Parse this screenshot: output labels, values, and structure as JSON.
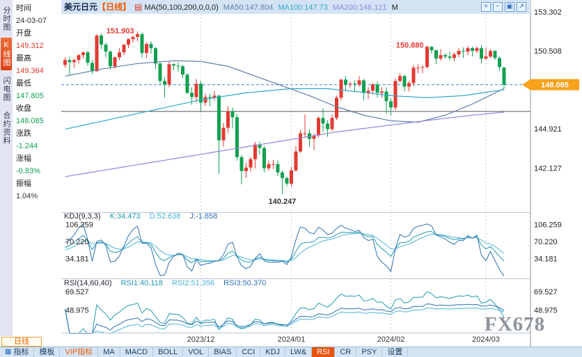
{
  "topbar": {
    "title": "美元日元",
    "period": "【日线】",
    "ma_params": "MA(50,100,200,0,0,0)",
    "ma_values": [
      {
        "text": "MA50:147.804",
        "color": "#5f7ea8"
      },
      {
        "text": "MA100:147.73",
        "color": "#2fa8c8"
      },
      {
        "text": "MA200:146.121",
        "color": "#8f86dc"
      }
    ],
    "truncated": "M",
    "tools": [
      {
        "name": "zoom-in",
        "glyph": "+"
      },
      {
        "name": "zoom-out",
        "glyph": "−"
      },
      {
        "name": "panel-grid",
        "glyph": "▣"
      },
      {
        "name": "expand",
        "glyph": "↗"
      }
    ]
  },
  "left_tabs": [
    {
      "label": "分时图",
      "active": false
    },
    {
      "label": "K线图",
      "active": true
    },
    {
      "label": "闪电图",
      "active": false
    },
    {
      "label": "合约资料",
      "active": false
    }
  ],
  "quote": {
    "rows": [
      {
        "label": "时间",
        "value": "24-03-07",
        "trend": "flat"
      },
      {
        "label": "开盘",
        "value": "149.312",
        "trend": "up"
      },
      {
        "label": "最高",
        "value": "149.364",
        "trend": "up"
      },
      {
        "label": "最低",
        "value": "147.805",
        "trend": "down"
      },
      {
        "label": "收盘",
        "value": "148.085",
        "trend": "down"
      },
      {
        "label": "涨跌",
        "value": "-1.244",
        "trend": "down"
      },
      {
        "label": "涨幅",
        "value": "-0.83%",
        "trend": "down"
      },
      {
        "label": "振幅",
        "value": "1.04%",
        "trend": "flat"
      }
    ]
  },
  "colors": {
    "up": "#e23a32",
    "down": "#11a050",
    "badge": "#f9a21b",
    "dashed_line": "#3f7fd0",
    "accent_orange": "#f25a02"
  },
  "chart_data": {
    "type": "candlestick",
    "symbol": "美元日元",
    "period": "日线",
    "ylim": [
      139.05,
      153.75
    ],
    "price_ticks": [
      153.302,
      150.508,
      144.921,
      142.127
    ],
    "last_price": 148.085,
    "last_price_label": "148.085",
    "ref_line": 146.17,
    "xticks": [
      {
        "i": 30,
        "label": "2023/12"
      },
      {
        "i": 50,
        "label": "2024/01"
      },
      {
        "i": 72,
        "label": "2024/02"
      },
      {
        "i": 93,
        "label": "2024/03"
      }
    ],
    "annotations": [
      {
        "i": 16,
        "price": 151.903,
        "label": "151.903",
        "trend": "up",
        "pos": "left"
      },
      {
        "i": 80,
        "price": 150.88,
        "label": "150.880",
        "trend": "up",
        "pos": "left"
      },
      {
        "i": 48,
        "price": 140.247,
        "label": "140.247",
        "trend": "none",
        "pos": "below"
      }
    ],
    "candles": [
      [
        149.5,
        150.05,
        149.3,
        149.85
      ],
      [
        149.85,
        150.1,
        148.8,
        149.7
      ],
      [
        149.7,
        149.95,
        149.3,
        149.85
      ],
      [
        149.85,
        150.3,
        149.6,
        150.2
      ],
      [
        150.2,
        150.45,
        149.95,
        150.4
      ],
      [
        150.4,
        150.5,
        149.45,
        149.65
      ],
      [
        149.65,
        149.85,
        148.85,
        149.05
      ],
      [
        149.05,
        151.7,
        149.0,
        151.6
      ],
      [
        151.6,
        151.75,
        150.65,
        150.95
      ],
      [
        150.95,
        151.1,
        150.05,
        150.45
      ],
      [
        150.45,
        150.55,
        149.15,
        149.4
      ],
      [
        149.4,
        150.1,
        149.2,
        150.05
      ],
      [
        150.05,
        150.7,
        149.85,
        150.4
      ],
      [
        150.4,
        151.0,
        150.2,
        150.95
      ],
      [
        150.95,
        151.4,
        150.7,
        151.35
      ],
      [
        151.35,
        151.6,
        151.1,
        151.5
      ],
      [
        151.5,
        151.903,
        151.2,
        151.7
      ],
      [
        151.7,
        151.8,
        150.0,
        150.35
      ],
      [
        150.35,
        151.1,
        150.0,
        151.0
      ],
      [
        151.0,
        151.2,
        150.3,
        150.7
      ],
      [
        150.7,
        150.8,
        149.2,
        149.6
      ],
      [
        149.6,
        149.7,
        148.1,
        148.35
      ],
      [
        148.35,
        148.6,
        147.15,
        148.1
      ],
      [
        148.1,
        149.75,
        147.9,
        149.55
      ],
      [
        149.55,
        149.6,
        149.1,
        149.45
      ],
      [
        149.45,
        149.7,
        149.0,
        149.4
      ],
      [
        149.4,
        149.5,
        148.55,
        148.8
      ],
      [
        148.8,
        148.9,
        147.4,
        147.5
      ],
      [
        147.5,
        147.9,
        146.65,
        147.2
      ],
      [
        147.2,
        148.5,
        146.8,
        148.15
      ],
      [
        148.15,
        148.35,
        146.2,
        146.8
      ],
      [
        146.8,
        147.45,
        146.55,
        147.2
      ],
      [
        147.2,
        147.45,
        146.55,
        147.15
      ],
      [
        147.15,
        147.65,
        146.95,
        147.3
      ],
      [
        147.3,
        147.35,
        141.7,
        144.1
      ],
      [
        144.1,
        145.35,
        143.65,
        145.0
      ],
      [
        145.0,
        146.55,
        144.6,
        146.2
      ],
      [
        146.2,
        146.45,
        144.95,
        145.75
      ],
      [
        145.75,
        146.0,
        142.65,
        142.9
      ],
      [
        142.9,
        143.05,
        140.95,
        141.9
      ],
      [
        141.9,
        142.5,
        141.4,
        142.15
      ],
      [
        142.15,
        142.9,
        141.85,
        142.75
      ],
      [
        142.75,
        144.0,
        142.1,
        143.8
      ],
      [
        143.8,
        144.0,
        143.1,
        143.55
      ],
      [
        143.55,
        143.7,
        141.8,
        142.1
      ],
      [
        142.1,
        142.65,
        141.9,
        142.4
      ],
      [
        142.4,
        142.7,
        142.05,
        142.4
      ],
      [
        142.4,
        142.65,
        141.55,
        141.8
      ],
      [
        141.8,
        141.95,
        140.247,
        141.4
      ],
      [
        141.4,
        141.5,
        140.8,
        141.0
      ],
      [
        141.0,
        142.2,
        140.8,
        141.95
      ],
      [
        141.95,
        143.7,
        141.85,
        143.3
      ],
      [
        143.3,
        144.85,
        143.2,
        144.6
      ],
      [
        144.6,
        145.95,
        144.35,
        144.6
      ],
      [
        144.6,
        144.9,
        143.65,
        144.2
      ],
      [
        144.2,
        144.6,
        143.4,
        144.45
      ],
      [
        144.45,
        145.8,
        144.3,
        145.7
      ],
      [
        145.7,
        146.4,
        144.7,
        145.3
      ],
      [
        145.3,
        145.55,
        144.35,
        144.9
      ],
      [
        144.9,
        145.95,
        144.75,
        145.7
      ],
      [
        145.7,
        147.3,
        145.55,
        147.15
      ],
      [
        147.15,
        148.5,
        146.95,
        148.45
      ],
      [
        148.45,
        148.7,
        147.65,
        148.1
      ],
      [
        148.1,
        148.3,
        147.85,
        148.15
      ],
      [
        148.15,
        148.4,
        147.55,
        148.1
      ],
      [
        148.1,
        148.7,
        147.95,
        148.4
      ],
      [
        148.4,
        148.5,
        146.95,
        147.5
      ],
      [
        147.5,
        147.9,
        147.05,
        147.65
      ],
      [
        147.65,
        148.2,
        147.4,
        148.1
      ],
      [
        148.1,
        148.3,
        147.15,
        147.5
      ],
      [
        147.5,
        147.9,
        147.15,
        147.6
      ],
      [
        147.6,
        147.9,
        146.0,
        146.9
      ],
      [
        146.9,
        147.1,
        145.9,
        146.45
      ],
      [
        146.45,
        148.55,
        146.25,
        148.35
      ],
      [
        148.35,
        148.9,
        148.25,
        148.7
      ],
      [
        148.7,
        148.8,
        147.6,
        147.95
      ],
      [
        147.95,
        148.35,
        147.6,
        148.2
      ],
      [
        148.2,
        149.45,
        148.0,
        149.3
      ],
      [
        149.3,
        149.55,
        148.9,
        149.3
      ],
      [
        149.3,
        149.45,
        148.9,
        149.35
      ],
      [
        149.35,
        150.88,
        149.25,
        150.8
      ],
      [
        150.8,
        150.85,
        150.3,
        150.55
      ],
      [
        150.55,
        150.6,
        149.55,
        149.95
      ],
      [
        149.95,
        150.65,
        149.8,
        150.2
      ],
      [
        150.2,
        150.35,
        149.95,
        150.1
      ],
      [
        150.1,
        150.45,
        149.85,
        150.0
      ],
      [
        150.0,
        150.4,
        149.75,
        150.25
      ],
      [
        150.25,
        150.7,
        150.05,
        150.5
      ],
      [
        150.5,
        150.75,
        150.0,
        150.45
      ],
      [
        150.45,
        150.85,
        150.2,
        150.7
      ],
      [
        150.7,
        150.8,
        150.1,
        150.5
      ],
      [
        150.5,
        150.85,
        150.35,
        150.7
      ],
      [
        150.7,
        150.9,
        149.6,
        149.95
      ],
      [
        149.95,
        150.75,
        149.85,
        150.1
      ],
      [
        150.1,
        150.65,
        150.0,
        150.5
      ],
      [
        150.5,
        150.55,
        149.85,
        150.0
      ],
      [
        150.0,
        150.1,
        149.05,
        149.35
      ],
      [
        149.312,
        149.364,
        147.805,
        148.085
      ]
    ],
    "ma": [
      {
        "name": "MA50",
        "color": "#5f7ea8",
        "anchors": [
          [
            0,
            148.7
          ],
          [
            8,
            149.2
          ],
          [
            16,
            149.6
          ],
          [
            24,
            149.8
          ],
          [
            30,
            149.75
          ],
          [
            36,
            149.4
          ],
          [
            42,
            148.7
          ],
          [
            48,
            148.0
          ],
          [
            54,
            147.3
          ],
          [
            60,
            146.5
          ],
          [
            66,
            145.9
          ],
          [
            72,
            145.5
          ],
          [
            78,
            145.4
          ],
          [
            84,
            145.9
          ],
          [
            90,
            146.7
          ],
          [
            97,
            147.804
          ]
        ]
      },
      {
        "name": "MA100",
        "color": "#2fa8c8",
        "anchors": [
          [
            0,
            144.9
          ],
          [
            10,
            145.6
          ],
          [
            20,
            146.3
          ],
          [
            30,
            147.0
          ],
          [
            40,
            147.5
          ],
          [
            50,
            147.8
          ],
          [
            58,
            147.8
          ],
          [
            64,
            147.6
          ],
          [
            72,
            147.3
          ],
          [
            80,
            147.15
          ],
          [
            88,
            147.3
          ],
          [
            97,
            147.73
          ]
        ]
      },
      {
        "name": "MA200",
        "color": "#8f86dc",
        "anchors": [
          [
            0,
            141.5
          ],
          [
            15,
            142.3
          ],
          [
            30,
            143.1
          ],
          [
            45,
            143.9
          ],
          [
            60,
            144.7
          ],
          [
            72,
            145.2
          ],
          [
            82,
            145.6
          ],
          [
            90,
            145.9
          ],
          [
            97,
            146.121
          ]
        ]
      }
    ],
    "kdj": {
      "title": "KDJ(9,3,3)",
      "values": [
        "K:34.473",
        "D:52.638",
        "J:-1.858"
      ],
      "params": [
        9,
        3,
        3
      ],
      "ticks": [
        106.259,
        70.22,
        34.181
      ],
      "range": [
        -5,
        125
      ],
      "colors": [
        "#1f9ab0",
        "#4ab4d4",
        "#2e6fae"
      ]
    },
    "rsi": {
      "title": "RSI(14,60,40)",
      "values": [
        "RSI1:40.118",
        "RSI2:51.356",
        "RSI3:50.370"
      ],
      "params": [
        14,
        60,
        40
      ],
      "ticks": [
        69.527,
        48.975
      ],
      "range": [
        22,
        81
      ],
      "colors": [
        "#1f9ab0",
        "#4ab4d4",
        "#2e6fae"
      ]
    }
  },
  "bottom": {
    "period_button": "日线",
    "tabs": [
      {
        "label": "指标",
        "icon": true
      },
      {
        "label": "模板"
      },
      {
        "label": "VIP指标",
        "vip": true
      },
      {
        "label": "MA"
      },
      {
        "label": "MACD"
      },
      {
        "label": "BOLL"
      },
      {
        "label": "VOL"
      },
      {
        "label": "BIAS"
      },
      {
        "label": "CCI"
      },
      {
        "label": "KDJ"
      },
      {
        "label": "LW&"
      },
      {
        "label": "RSI",
        "active": true
      },
      {
        "label": "CR"
      },
      {
        "label": "PSY"
      },
      {
        "label": "设置"
      }
    ]
  },
  "watermark": "FX678"
}
